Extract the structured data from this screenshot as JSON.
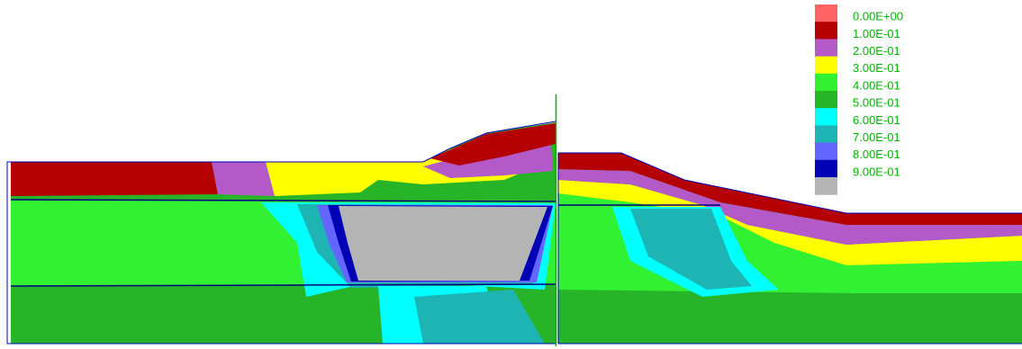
{
  "chart_data": {
    "type": "contour",
    "legend_colors": [
      "#ff6464",
      "#b40000",
      "#b45ac8",
      "#ffff00",
      "#32f032",
      "#28b428",
      "#00ffff",
      "#1eb4b4",
      "#6464ff",
      "#0000b4",
      "#b4b4b4"
    ],
    "legend_labels": [
      "0.00E+00",
      "1.00E-01",
      "2.00E-01",
      "3.00E-01",
      "4.00E-01",
      "5.00E-01",
      "6.00E-01",
      "7.00E-01",
      "8.00E-01",
      "9.00E-01"
    ],
    "label_color": "#00b400"
  }
}
